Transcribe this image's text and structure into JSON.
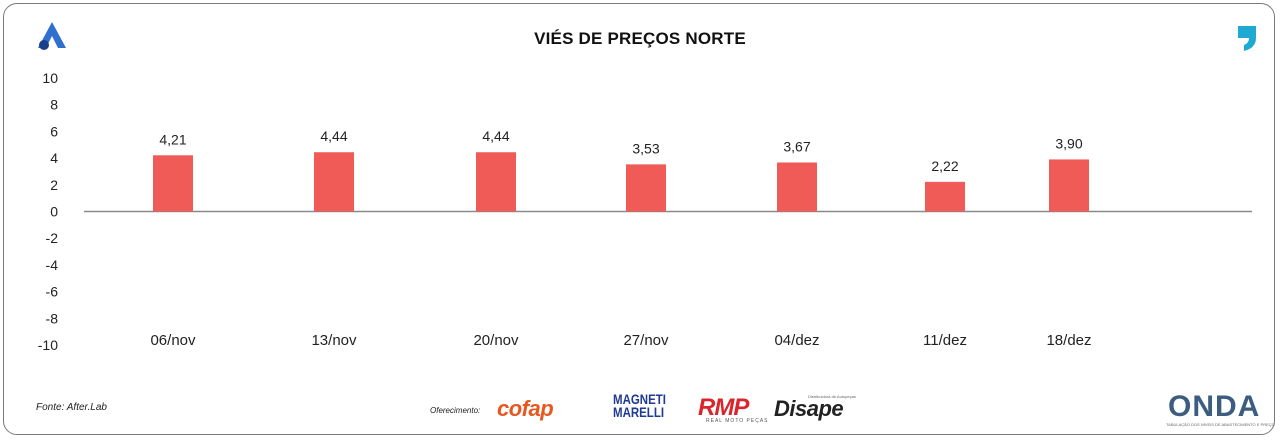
{
  "page": {
    "title": "VIÉS DE PREÇOS NORTE",
    "source": "Fonte: After.Lab",
    "sponsor_label": "Oferecimento:"
  },
  "sponsors": {
    "cofap": "cofap",
    "magneti_line1": "MAGNETI",
    "magneti_line2": "MARELLI",
    "rmp": "RMP",
    "rmp_sub": "REAL MOTO PEÇAS",
    "disape": "Disape",
    "disape_sub": "Distribuidora de Autopeças"
  },
  "onda": {
    "name": "ONDA",
    "tagline": "TABULAÇÃO DOS NÍVEIS DE ABASTECIMENTO E PREÇO"
  },
  "icons": {
    "top_left": "after-lab-a-logo",
    "top_right": "quote-mark-logo"
  },
  "chart_data": {
    "type": "bar",
    "title": "VIÉS DE PREÇOS NORTE",
    "categories": [
      "06/nov",
      "13/nov",
      "20/nov",
      "27/nov",
      "04/dez",
      "11/dez",
      "18/dez"
    ],
    "values": [
      4.21,
      4.44,
      4.44,
      3.53,
      3.67,
      2.22,
      3.9
    ],
    "data_labels": [
      "4,21",
      "4,44",
      "4,44",
      "3,53",
      "3,67",
      "2,22",
      "3,90"
    ],
    "y_ticks": [
      "10",
      "8",
      "6",
      "4",
      "2",
      "0",
      "-2",
      "-4",
      "-6",
      "-8",
      "-10"
    ],
    "ylim": [
      -10,
      10
    ],
    "bar_color": "#f05a57",
    "grid": false,
    "legend": "none"
  }
}
